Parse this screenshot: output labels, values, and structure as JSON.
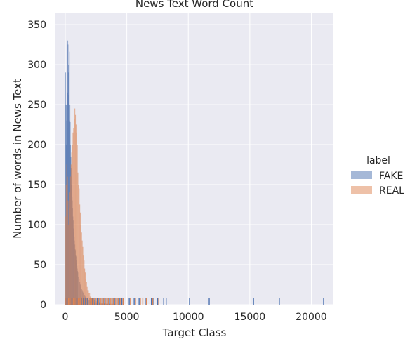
{
  "chart_data": {
    "type": "histogram",
    "title": "News Text Word Count",
    "xlabel": "Target Class",
    "ylabel": "Number of words in News Text",
    "xlim": [
      -800,
      21800
    ],
    "ylim": [
      0,
      365
    ],
    "xticks": [
      0,
      5000,
      10000,
      15000,
      20000
    ],
    "yticks": [
      0,
      50,
      100,
      150,
      200,
      250,
      300,
      350
    ],
    "grid": true,
    "background": "#eaeaf2",
    "legend": {
      "title": "label",
      "placement": "right"
    },
    "series": [
      {
        "name": "FAKE",
        "color": "#4c72b0",
        "bins": [
          {
            "x": 0,
            "y": 290
          },
          {
            "x": 25,
            "y": 250
          },
          {
            "x": 50,
            "y": 200
          },
          {
            "x": 75,
            "y": 250
          },
          {
            "x": 100,
            "y": 230
          },
          {
            "x": 125,
            "y": 220
          },
          {
            "x": 150,
            "y": 265
          },
          {
            "x": 175,
            "y": 330
          },
          {
            "x": 200,
            "y": 325
          },
          {
            "x": 225,
            "y": 290
          },
          {
            "x": 250,
            "y": 300
          },
          {
            "x": 275,
            "y": 262
          },
          {
            "x": 300,
            "y": 316
          },
          {
            "x": 325,
            "y": 230
          },
          {
            "x": 350,
            "y": 250
          },
          {
            "x": 375,
            "y": 228
          },
          {
            "x": 400,
            "y": 200
          },
          {
            "x": 425,
            "y": 185
          },
          {
            "x": 450,
            "y": 170
          },
          {
            "x": 475,
            "y": 150
          },
          {
            "x": 500,
            "y": 160
          },
          {
            "x": 525,
            "y": 135
          },
          {
            "x": 550,
            "y": 130
          },
          {
            "x": 575,
            "y": 120
          },
          {
            "x": 600,
            "y": 110
          },
          {
            "x": 625,
            "y": 105
          },
          {
            "x": 650,
            "y": 95
          },
          {
            "x": 675,
            "y": 90
          },
          {
            "x": 700,
            "y": 85
          },
          {
            "x": 725,
            "y": 80
          },
          {
            "x": 750,
            "y": 75
          },
          {
            "x": 775,
            "y": 70
          },
          {
            "x": 800,
            "y": 68
          },
          {
            "x": 825,
            "y": 62
          },
          {
            "x": 850,
            "y": 60
          },
          {
            "x": 875,
            "y": 55
          },
          {
            "x": 900,
            "y": 52
          },
          {
            "x": 925,
            "y": 48
          },
          {
            "x": 950,
            "y": 45
          },
          {
            "x": 975,
            "y": 42
          },
          {
            "x": 1000,
            "y": 40
          },
          {
            "x": 1050,
            "y": 35
          },
          {
            "x": 1100,
            "y": 32
          },
          {
            "x": 1150,
            "y": 28
          },
          {
            "x": 1200,
            "y": 25
          },
          {
            "x": 1250,
            "y": 22
          },
          {
            "x": 1300,
            "y": 20
          },
          {
            "x": 1350,
            "y": 18
          },
          {
            "x": 1400,
            "y": 16
          },
          {
            "x": 1450,
            "y": 14
          },
          {
            "x": 1500,
            "y": 12
          },
          {
            "x": 1600,
            "y": 10
          },
          {
            "x": 1700,
            "y": 8
          },
          {
            "x": 1800,
            "y": 6
          },
          {
            "x": 1900,
            "y": 5
          },
          {
            "x": 2000,
            "y": 4
          },
          {
            "x": 2200,
            "y": 3
          },
          {
            "x": 2400,
            "y": 2
          },
          {
            "x": 2600,
            "y": 2
          },
          {
            "x": 2800,
            "y": 1
          },
          {
            "x": 3000,
            "y": 1
          },
          {
            "x": 3300,
            "y": 1
          },
          {
            "x": 3600,
            "y": 1
          }
        ],
        "rug": [
          20,
          90,
          150,
          210,
          280,
          350,
          430,
          520,
          600,
          700,
          800,
          900,
          1000,
          1150,
          1300,
          1450,
          1600,
          1800,
          2000,
          2200,
          2400,
          2600,
          2800,
          3000,
          3200,
          3400,
          3600,
          3800,
          4000,
          4200,
          4400,
          4600,
          5200,
          5600,
          6000,
          6500,
          7000,
          7200,
          7500,
          8000,
          8200,
          10100,
          11700,
          15300,
          17400,
          21000
        ]
      },
      {
        "name": "REAL",
        "color": "#dd8452",
        "bins": [
          {
            "x": 0,
            "y": 110
          },
          {
            "x": 50,
            "y": 150
          },
          {
            "x": 100,
            "y": 175
          },
          {
            "x": 150,
            "y": 160
          },
          {
            "x": 200,
            "y": 130
          },
          {
            "x": 250,
            "y": 100
          },
          {
            "x": 300,
            "y": 120
          },
          {
            "x": 350,
            "y": 140
          },
          {
            "x": 400,
            "y": 160
          },
          {
            "x": 450,
            "y": 175
          },
          {
            "x": 500,
            "y": 190
          },
          {
            "x": 550,
            "y": 200
          },
          {
            "x": 600,
            "y": 215
          },
          {
            "x": 650,
            "y": 220
          },
          {
            "x": 700,
            "y": 232
          },
          {
            "x": 750,
            "y": 245
          },
          {
            "x": 800,
            "y": 237
          },
          {
            "x": 850,
            "y": 225
          },
          {
            "x": 900,
            "y": 215
          },
          {
            "x": 950,
            "y": 200
          },
          {
            "x": 1000,
            "y": 165
          },
          {
            "x": 1050,
            "y": 150
          },
          {
            "x": 1100,
            "y": 145
          },
          {
            "x": 1150,
            "y": 125
          },
          {
            "x": 1200,
            "y": 115
          },
          {
            "x": 1250,
            "y": 100
          },
          {
            "x": 1300,
            "y": 90
          },
          {
            "x": 1350,
            "y": 80
          },
          {
            "x": 1400,
            "y": 72
          },
          {
            "x": 1450,
            "y": 62
          },
          {
            "x": 1500,
            "y": 55
          },
          {
            "x": 1550,
            "y": 45
          },
          {
            "x": 1600,
            "y": 40
          },
          {
            "x": 1650,
            "y": 32
          },
          {
            "x": 1700,
            "y": 28
          },
          {
            "x": 1750,
            "y": 22
          },
          {
            "x": 1800,
            "y": 18
          },
          {
            "x": 1900,
            "y": 14
          },
          {
            "x": 2000,
            "y": 10
          },
          {
            "x": 2100,
            "y": 8
          },
          {
            "x": 2200,
            "y": 6
          },
          {
            "x": 2400,
            "y": 4
          },
          {
            "x": 2600,
            "y": 3
          },
          {
            "x": 2800,
            "y": 2
          },
          {
            "x": 3000,
            "y": 2
          },
          {
            "x": 3300,
            "y": 1
          },
          {
            "x": 3600,
            "y": 1
          },
          {
            "x": 4000,
            "y": 1
          }
        ],
        "rug": [
          50,
          150,
          250,
          350,
          450,
          550,
          650,
          750,
          850,
          950,
          1050,
          1150,
          1250,
          1400,
          1550,
          1700,
          1850,
          2000,
          2150,
          2300,
          2500,
          2700,
          2900,
          3100,
          3300,
          3500,
          3700,
          3900,
          4100,
          4300,
          4500,
          4700,
          5300,
          5700,
          6100,
          6300,
          6600,
          7100,
          7600
        ]
      }
    ]
  }
}
